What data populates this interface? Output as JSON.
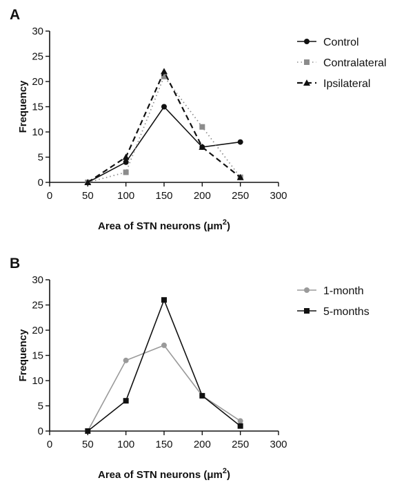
{
  "chart_data": [
    {
      "panel": "A",
      "type": "line",
      "x": [
        50,
        100,
        150,
        200,
        250
      ],
      "series": [
        {
          "name": "Control",
          "values": [
            0,
            4,
            15,
            7,
            8
          ],
          "color": "#111111",
          "dash": "solid",
          "marker": "circle"
        },
        {
          "name": "Contralateral",
          "values": [
            0,
            2,
            21,
            11,
            1
          ],
          "color": "#8c8c8c",
          "dash": "dotted",
          "marker": "square"
        },
        {
          "name": "Ipsilateral",
          "values": [
            0,
            5,
            22,
            7,
            1
          ],
          "color": "#111111",
          "dash": "dashed",
          "marker": "triangle"
        }
      ],
      "xlabel": "Area of STN neurons (μm",
      "xlabel_sup": "2",
      "xlabel_end": ")",
      "ylabel": "Frequency",
      "xlim": [
        0,
        300
      ],
      "ylim": [
        0,
        30
      ],
      "xticks": [
        0,
        50,
        100,
        150,
        200,
        250,
        300
      ],
      "yticks": [
        0,
        5,
        10,
        15,
        20,
        25,
        30
      ],
      "grid": false,
      "legend": "right"
    },
    {
      "panel": "B",
      "type": "line",
      "x": [
        50,
        100,
        150,
        200,
        250
      ],
      "series": [
        {
          "name": "1-month",
          "values": [
            0,
            14,
            17,
            7,
            2
          ],
          "color": "#9a9a9a",
          "dash": "solid",
          "marker": "circle"
        },
        {
          "name": "5-months",
          "values": [
            0,
            6,
            26,
            7,
            1
          ],
          "color": "#111111",
          "dash": "solid",
          "marker": "square"
        }
      ],
      "xlabel": "Area of STN neurons (μm",
      "xlabel_sup": "2",
      "xlabel_end": ")",
      "ylabel": "Frequency",
      "xlim": [
        0,
        300
      ],
      "ylim": [
        0,
        30
      ],
      "xticks": [
        0,
        50,
        100,
        150,
        200,
        250,
        300
      ],
      "yticks": [
        0,
        5,
        10,
        15,
        20,
        25,
        30
      ],
      "grid": false,
      "legend": "right"
    }
  ]
}
